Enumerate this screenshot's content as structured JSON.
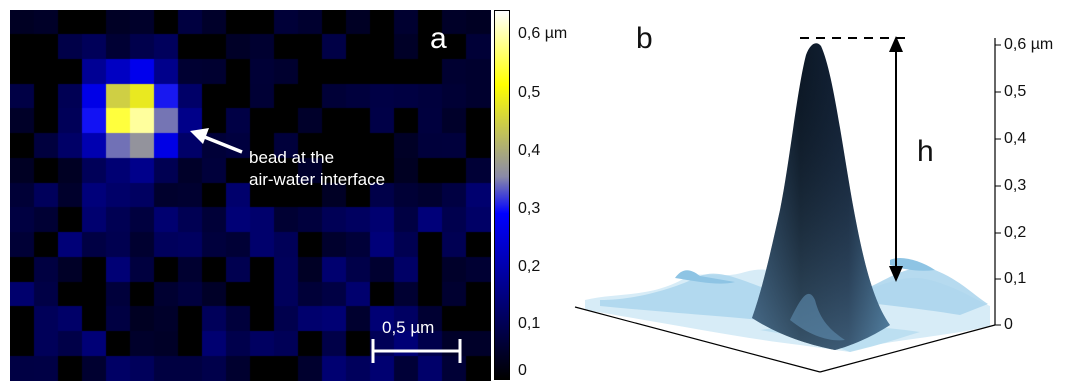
{
  "panel_a": {
    "label": "a",
    "annotation_line1": "bead at the",
    "annotation_line2": "air-water interface",
    "scale_bar": "0,5 µm"
  },
  "colorbar": {
    "ticks": [
      "0,6 µm",
      "0,5",
      "0,4",
      "0,3",
      "0,2",
      "0,1",
      "0"
    ],
    "colors": [
      "#000000",
      "#0000ff",
      "#ffff00",
      "#ffffff"
    ]
  },
  "panel_b": {
    "label": "b",
    "height_label": "h",
    "z_ticks": [
      "0,6 µm",
      "0,5",
      "0,4",
      "0,3",
      "0,2",
      "0,1",
      "0"
    ]
  }
}
